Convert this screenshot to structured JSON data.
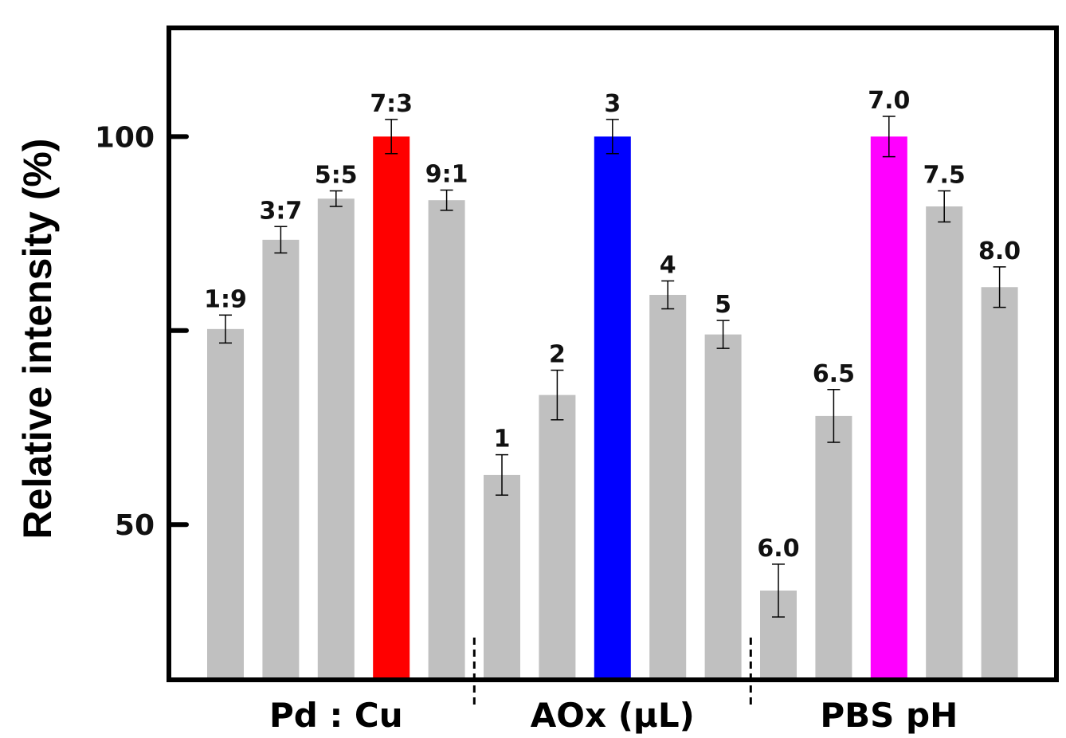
{
  "chart_data": {
    "type": "bar",
    "ylabel": "Relative intensity (%)",
    "ylim": [
      30,
      114
    ],
    "yticks": [
      {
        "value": 50,
        "label": "50"
      },
      {
        "value": 75,
        "label": ""
      },
      {
        "value": 100,
        "label": "100"
      }
    ],
    "default_bar_color": "#c0c0c0",
    "groups": [
      {
        "label": "Pd : Cu",
        "bars": [
          {
            "label": "1:9",
            "value": 75.2,
            "error": 1.8
          },
          {
            "label": "3:7",
            "value": 86.7,
            "error": 1.7
          },
          {
            "label": "5:5",
            "value": 92.0,
            "error": 1.0
          },
          {
            "label": "7:3",
            "value": 100,
            "error": 2.2,
            "color": "#ff0000"
          },
          {
            "label": "9:1",
            "value": 91.8,
            "error": 1.3
          }
        ]
      },
      {
        "label": "AOx (μL)",
        "bars": [
          {
            "label": "1",
            "value": 56.4,
            "error": 2.6
          },
          {
            "label": "2",
            "value": 66.7,
            "error": 3.2
          },
          {
            "label": "3",
            "value": 100,
            "error": 2.2,
            "color": "#0000ff"
          },
          {
            "label": "4",
            "value": 79.6,
            "error": 1.8
          },
          {
            "label": "5",
            "value": 74.5,
            "error": 1.8
          }
        ]
      },
      {
        "label": "PBS pH",
        "bars": [
          {
            "label": "6.0",
            "value": 41.5,
            "error": 3.4
          },
          {
            "label": "6.5",
            "value": 64.0,
            "error": 3.4
          },
          {
            "label": "7.0",
            "value": 100,
            "error": 2.6,
            "color": "#ff00ff"
          },
          {
            "label": "7.5",
            "value": 91.0,
            "error": 2.0
          },
          {
            "label": "8.0",
            "value": 80.6,
            "error": 2.6
          }
        ]
      }
    ]
  }
}
